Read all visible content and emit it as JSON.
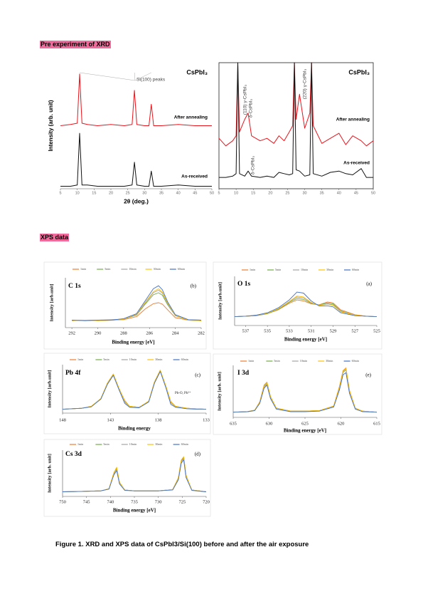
{
  "sections": [
    "Pre experiment of XRD",
    "XPS data"
  ],
  "caption": "Figure 1.  XRD and XPS data of CsPbI3/Si(100) before and after the air exposure",
  "chart_data": [
    {
      "type": "line",
      "title": "CsPbI₃",
      "x_label": "2θ (deg.)",
      "y_label": "Intensity (arb. unit)",
      "annotations": [
        "Si(100) peaks"
      ],
      "x": [
        5,
        8,
        10,
        10.7,
        11.4,
        13,
        16,
        20,
        24,
        26.3,
        27,
        27.7,
        30,
        31.3,
        32,
        32.7,
        35,
        40,
        45,
        50
      ],
      "xlim": [
        5,
        50
      ],
      "xticks": [
        5,
        10,
        15,
        20,
        25,
        30,
        35,
        40,
        45,
        50
      ],
      "ylim": [
        0,
        100
      ],
      "series": [
        {
          "name": "After annealing",
          "color": "#e8141c",
          "values": [
            50,
            51,
            52,
            91,
            52,
            51,
            50,
            51,
            50,
            51,
            78,
            51,
            50,
            50,
            67,
            50,
            50,
            51,
            50,
            50
          ]
        },
        {
          "name": "As-received",
          "color": "#111111",
          "values": [
            2,
            2,
            3,
            44,
            3,
            3,
            2,
            2,
            2,
            3,
            21,
            3,
            2,
            2,
            14,
            2,
            2,
            3,
            2,
            2
          ]
        }
      ]
    },
    {
      "type": "line",
      "title": "CsPbI₃",
      "annotations": [
        "(110) γ-CsPbI₃",
        "δ-CsPbI₃",
        "(220) γ-CsPbI₃",
        "δ-CsPbI₃"
      ],
      "x": [
        5,
        7,
        9,
        10,
        10.5,
        11,
        12.5,
        13.5,
        14.5,
        17,
        19,
        21,
        22.5,
        24,
        25.5,
        26.5,
        27,
        27.5,
        28.5,
        30,
        31.5,
        32,
        32.5,
        35,
        37.5,
        40,
        42,
        44,
        46.5,
        48,
        50
      ],
      "xlim": [
        5,
        50
      ],
      "xticks": [
        5,
        10,
        15,
        20,
        25,
        30,
        35,
        40,
        45,
        50
      ],
      "ylim": [
        0,
        100
      ],
      "series": [
        {
          "name": "After annealing",
          "color": "#e8141c",
          "values": [
            40,
            34,
            38,
            42,
            100,
            45,
            55,
            60,
            42,
            38,
            40,
            36,
            42,
            38,
            45,
            50,
            100,
            55,
            75,
            48,
            60,
            100,
            50,
            36,
            40,
            44,
            35,
            42,
            38,
            34,
            38
          ]
        },
        {
          "name": "As-received",
          "color": "#111111",
          "values": [
            9,
            9,
            10,
            12,
            100,
            12,
            10,
            14,
            10,
            9,
            10,
            9,
            13,
            12,
            11,
            12,
            100,
            15,
            14,
            10,
            11,
            100,
            12,
            10,
            13,
            14,
            12,
            11,
            16,
            9,
            9
          ]
        }
      ]
    },
    {
      "type": "line",
      "title": "C 1s",
      "panel_label": "(b)",
      "x_label": "Binding energy [eV]",
      "y_label": "Intensity [arb.unit]",
      "x": [
        292,
        291,
        290,
        289,
        288,
        287,
        286.3,
        285.7,
        285.3,
        285,
        284.6,
        284,
        283,
        282
      ],
      "xlim": [
        292.5,
        282
      ],
      "xticks": [
        292,
        290,
        288,
        286,
        284,
        282
      ],
      "ylim": [
        0,
        100
      ],
      "series": [
        {
          "name": "1min",
          "color": "#ed7d31",
          "values": [
            14,
            15,
            14,
            15,
            16,
            22,
            38,
            48,
            50,
            47,
            36,
            20,
            15,
            14
          ]
        },
        {
          "name": "5min",
          "color": "#70ad47",
          "values": [
            14,
            15,
            15,
            15,
            17,
            25,
            48,
            66,
            70,
            65,
            46,
            24,
            15,
            14
          ]
        },
        {
          "name": "10min",
          "color": "#a5a5a5",
          "values": [
            15,
            14,
            15,
            16,
            17,
            26,
            50,
            70,
            75,
            69,
            48,
            24,
            16,
            15
          ]
        },
        {
          "name": "30min",
          "color": "#ffc000",
          "values": [
            14,
            15,
            14,
            15,
            17,
            27,
            52,
            72,
            78,
            71,
            50,
            25,
            15,
            14
          ]
        },
        {
          "name": "60min",
          "color": "#4472c4",
          "values": [
            15,
            14,
            15,
            15,
            18,
            28,
            55,
            78,
            84,
            76,
            52,
            26,
            16,
            15
          ]
        }
      ]
    },
    {
      "type": "line",
      "title": "O 1s",
      "panel_label": "(a)",
      "x_label": "Binding energy [eV]",
      "y_label": "Intensity [arb.unit]",
      "x": [
        538,
        537,
        536,
        535,
        534,
        533,
        532.3,
        531.7,
        531,
        530.3,
        529.5,
        529,
        528.3,
        527,
        526,
        525
      ],
      "xlim": [
        538,
        525
      ],
      "xticks": [
        537,
        535,
        533,
        531,
        529,
        527,
        525
      ],
      "ylim": [
        0,
        100
      ],
      "series": [
        {
          "name": "1min",
          "color": "#ed7d31",
          "values": [
            18,
            19,
            20,
            24,
            32,
            45,
            52,
            50,
            44,
            42,
            48,
            46,
            32,
            22,
            19,
            18
          ]
        },
        {
          "name": "5min",
          "color": "#70ad47",
          "values": [
            18,
            19,
            20,
            24,
            33,
            47,
            55,
            53,
            45,
            42,
            46,
            44,
            30,
            21,
            19,
            18
          ]
        },
        {
          "name": "10min",
          "color": "#a5a5a5",
          "values": [
            18,
            19,
            20,
            25,
            34,
            48,
            58,
            56,
            46,
            41,
            44,
            42,
            29,
            21,
            19,
            18
          ]
        },
        {
          "name": "30min",
          "color": "#ffc000",
          "values": [
            18,
            19,
            21,
            25,
            34,
            49,
            60,
            58,
            47,
            41,
            43,
            41,
            28,
            21,
            19,
            18
          ]
        },
        {
          "name": "60min",
          "color": "#4472c4",
          "values": [
            18,
            19,
            21,
            26,
            36,
            52,
            68,
            66,
            50,
            40,
            40,
            38,
            26,
            20,
            19,
            18
          ]
        }
      ]
    },
    {
      "type": "line",
      "title": "Pb 4f",
      "panel_label": "(c)",
      "x_label": "Binding energy",
      "y_label": "Intensity [arb.unit]",
      "annotations": [
        "Pb-O, Pb²⁺"
      ],
      "x": [
        148,
        146,
        145,
        144,
        143.3,
        142.7,
        142.1,
        141.5,
        141,
        140,
        139,
        138.4,
        137.8,
        137.2,
        136.7,
        136.2,
        135,
        134,
        133
      ],
      "xlim": [
        148,
        133
      ],
      "xticks": [
        148,
        143,
        138,
        133
      ],
      "ylim": [
        0,
        100
      ],
      "series": [
        {
          "name": "1min",
          "color": "#ed7d31",
          "values": [
            8,
            10,
            14,
            30,
            62,
            78,
            50,
            26,
            14,
            12,
            24,
            62,
            86,
            55,
            24,
            14,
            10,
            9,
            8
          ]
        },
        {
          "name": "5min",
          "color": "#70ad47",
          "values": [
            8,
            10,
            14,
            30,
            62,
            79,
            50,
            24,
            14,
            12,
            24,
            63,
            87,
            55,
            22,
            14,
            10,
            9,
            8
          ]
        },
        {
          "name": "10min",
          "color": "#a5a5a5",
          "values": [
            8,
            10,
            14,
            29,
            61,
            80,
            49,
            23,
            13,
            12,
            24,
            64,
            88,
            54,
            21,
            13,
            10,
            9,
            8
          ]
        },
        {
          "name": "30min",
          "color": "#ffc000",
          "values": [
            8,
            10,
            14,
            30,
            63,
            81,
            51,
            25,
            14,
            12,
            25,
            65,
            89,
            56,
            23,
            14,
            10,
            9,
            8
          ]
        },
        {
          "name": "60min",
          "color": "#4472c4",
          "values": [
            8,
            10,
            13,
            29,
            60,
            78,
            48,
            20,
            12,
            11,
            23,
            62,
            86,
            52,
            18,
            12,
            9,
            8,
            8
          ]
        }
      ]
    },
    {
      "type": "line",
      "title": "I 3d",
      "panel_label": "(e)",
      "x_label": "Binding energy [eV]",
      "y_label": "Intensity [arb. unit]",
      "x": [
        635,
        633,
        632,
        631.3,
        630.7,
        630.3,
        629.8,
        629,
        627,
        625,
        623,
        621,
        620.2,
        619.7,
        619.3,
        618.8,
        618,
        617,
        615
      ],
      "xlim": [
        635,
        615
      ],
      "xticks": [
        635,
        630,
        625,
        620,
        615
      ],
      "ylim": [
        0,
        100
      ],
      "series": [
        {
          "name": "1min",
          "color": "#ed7d31",
          "values": [
            10,
            11,
            14,
            30,
            62,
            68,
            40,
            18,
            12,
            12,
            13,
            22,
            60,
            90,
            95,
            52,
            18,
            12,
            10
          ]
        },
        {
          "name": "5min",
          "color": "#70ad47",
          "values": [
            10,
            11,
            14,
            29,
            60,
            66,
            39,
            18,
            12,
            12,
            13,
            21,
            58,
            88,
            93,
            50,
            17,
            12,
            10
          ]
        },
        {
          "name": "10min",
          "color": "#a5a5a5",
          "values": [
            10,
            11,
            14,
            28,
            58,
            64,
            38,
            17,
            12,
            12,
            13,
            21,
            56,
            86,
            91,
            49,
            17,
            12,
            10
          ]
        },
        {
          "name": "30min",
          "color": "#ffc000",
          "values": [
            10,
            11,
            14,
            29,
            61,
            67,
            40,
            18,
            12,
            12,
            13,
            22,
            59,
            89,
            94,
            51,
            18,
            12,
            10
          ]
        },
        {
          "name": "60min",
          "color": "#4472c4",
          "values": [
            10,
            11,
            13,
            27,
            56,
            62,
            36,
            16,
            11,
            11,
            12,
            20,
            53,
            82,
            86,
            46,
            16,
            11,
            10
          ]
        }
      ]
    },
    {
      "type": "line",
      "title": "Cs 3d",
      "panel_label": "(d)",
      "x_label": "Binding energy [eV]",
      "y_label": "Intensity [arb. unit]",
      "x": [
        750,
        746,
        742,
        740.3,
        739.3,
        738.7,
        738.1,
        737,
        735,
        730,
        727,
        725.8,
        725.2,
        724.7,
        724.2,
        723,
        720
      ],
      "xlim": [
        750,
        720
      ],
      "xticks": [
        750,
        745,
        740,
        735,
        730,
        725,
        720
      ],
      "ylim": [
        0,
        100
      ],
      "series": [
        {
          "name": "1min",
          "color": "#ed7d31",
          "values": [
            10,
            11,
            12,
            16,
            50,
            62,
            30,
            14,
            12,
            12,
            15,
            40,
            78,
            85,
            45,
            14,
            10
          ]
        },
        {
          "name": "5min",
          "color": "#70ad47",
          "values": [
            10,
            11,
            12,
            16,
            49,
            60,
            29,
            14,
            12,
            12,
            15,
            39,
            76,
            83,
            44,
            14,
            10
          ]
        },
        {
          "name": "10min",
          "color": "#a5a5a5",
          "values": [
            10,
            11,
            12,
            16,
            48,
            59,
            29,
            14,
            12,
            12,
            15,
            38,
            75,
            82,
            43,
            14,
            10
          ]
        },
        {
          "name": "30min",
          "color": "#ffc000",
          "values": [
            10,
            11,
            12,
            17,
            51,
            63,
            31,
            14,
            12,
            12,
            15,
            41,
            79,
            86,
            46,
            14,
            10
          ]
        },
        {
          "name": "60min",
          "color": "#4472c4",
          "values": [
            10,
            11,
            12,
            16,
            46,
            56,
            27,
            13,
            12,
            12,
            14,
            36,
            72,
            79,
            41,
            13,
            10
          ]
        }
      ]
    }
  ]
}
